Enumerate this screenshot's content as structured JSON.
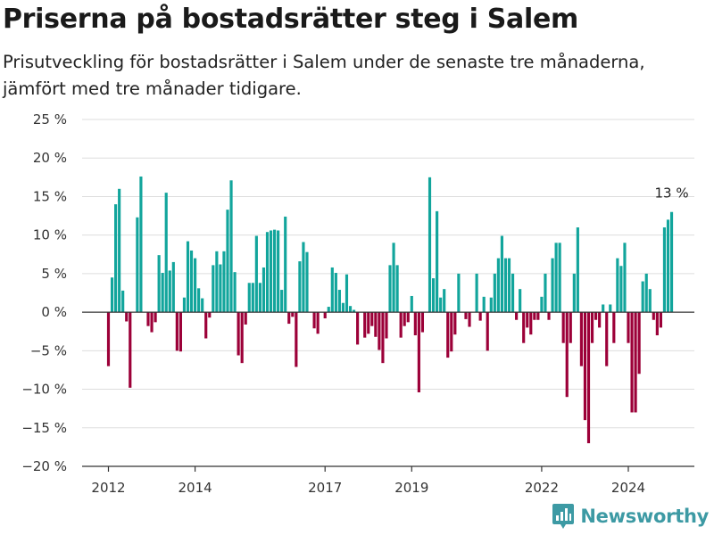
{
  "header": {
    "title": "Priserna på bostadsrätter steg i Salem",
    "subtitle": "Prisutveckling för bostadsrätter i Salem under de senaste tre månaderna, jämfört med tre månader tidigare."
  },
  "brand": {
    "name": "Newsworthy",
    "icon": "newsworthy-logo-icon"
  },
  "colors": {
    "positive": "#12a59c",
    "negative": "#9c0038",
    "grid": "#dddddd",
    "axis": "#333333"
  },
  "chart_data": {
    "type": "bar",
    "ylim": [
      -20,
      25
    ],
    "yticks": [
      -20,
      -15,
      -10,
      -5,
      0,
      5,
      10,
      15,
      20,
      25
    ],
    "ytick_labels": [
      "−20 %",
      "−15 %",
      "−10 %",
      "−5 %",
      "0 %",
      "5 %",
      "10 %",
      "15 %",
      "20 %",
      "25 %"
    ],
    "xticks": [
      2012,
      2014,
      2017,
      2019,
      2022,
      2024
    ],
    "xtick_labels": [
      "2012",
      "2014",
      "2017",
      "2019",
      "2022",
      "2024"
    ],
    "x_start": "2012-01",
    "frequency": "monthly",
    "values": [
      -7,
      4.5,
      14,
      16,
      2.8,
      -1.2,
      -9.8,
      0,
      12.3,
      17.6,
      0,
      -1.8,
      -2.6,
      -1.3,
      7.4,
      5.1,
      15.5,
      5.4,
      6.5,
      -5,
      -5.1,
      1.9,
      9.2,
      8,
      7,
      3.1,
      1.8,
      -3.4,
      -0.7,
      6.1,
      7.9,
      6.2,
      7.9,
      13.3,
      17.1,
      5.2,
      -5.6,
      -6.6,
      -1.6,
      3.8,
      3.8,
      9.9,
      3.8,
      5.8,
      10.4,
      10.6,
      10.7,
      10.6,
      2.9,
      12.4,
      -1.5,
      -0.6,
      -7.1,
      6.6,
      9.1,
      7.8,
      0,
      -2.1,
      -2.8,
      0,
      -0.8,
      0.7,
      5.8,
      5.1,
      2.9,
      1.2,
      4.9,
      0.8,
      0.3,
      -4.2,
      0,
      -3.3,
      -2.8,
      -1.8,
      -3.2,
      -4.9,
      -6.6,
      -3.4,
      6.1,
      9,
      6.1,
      -3.3,
      -1.8,
      -1.3,
      2.1,
      -3,
      -10.4,
      -2.6,
      0,
      17.5,
      4.4,
      13.1,
      1.9,
      3,
      -5.9,
      -5.1,
      -2.9,
      5,
      0,
      -0.9,
      -1.9,
      0,
      5,
      -1.1,
      2,
      -5,
      1.9,
      5,
      7,
      9.9,
      7,
      7,
      5,
      -1,
      3,
      -4,
      -2,
      -2.9,
      -1,
      -1,
      2,
      5,
      -1,
      7,
      9,
      9,
      -4,
      -11,
      -4,
      5,
      11,
      -7,
      -14,
      -17,
      -4,
      -1,
      -2,
      1,
      -7,
      1,
      -4,
      7,
      6,
      9,
      -4,
      -13,
      -13,
      -8,
      4,
      5,
      3,
      -1,
      -3,
      -2,
      11,
      12,
      13
    ],
    "annotation": {
      "text": "13 %",
      "x": "2025-01"
    }
  }
}
